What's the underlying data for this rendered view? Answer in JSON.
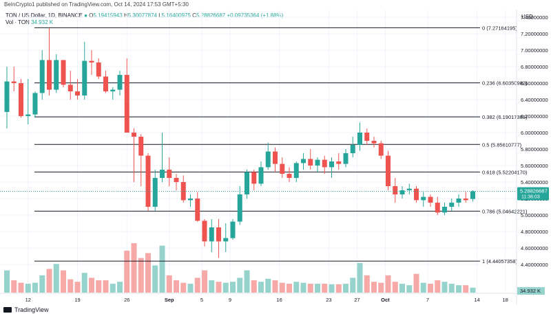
{
  "header": {
    "published": "BeInCrypto1 published on TradingView.com, Oct 14, 2024 17:53 GMT+5:30",
    "currency": "USD"
  },
  "legend": {
    "symbol": "TON / US Dollar, 1D, BINANCE",
    "o_label": "O",
    "o_value": "5.19415943",
    "h_label": "H",
    "h_value": "5.30077874",
    "l_label": "L",
    "l_value": "5.16400975",
    "c_label": "C",
    "c_value": "5.28826687",
    "change": "+0.09735364 (+1.88%)",
    "vol_label": "Vol · TON",
    "vol_value": "34.932 K"
  },
  "footer": {
    "brand": "TradingView"
  },
  "colors": {
    "up": "#26a69a",
    "down": "#ef5350",
    "up_vol": "#96d3cd",
    "down_vol": "#f6a9a7",
    "line": "#131722",
    "price_badge": "#26a69a"
  },
  "chart_data": {
    "type": "candlestick",
    "ylim": [
      4.1,
      7.5
    ],
    "y_ticks": [
      "7.40000000",
      "7.20000000",
      "7.00000000",
      "6.80000000",
      "6.60000000",
      "6.40000000",
      "6.20000000",
      "6.00000000",
      "5.80000000",
      "5.60000000",
      "5.40000000",
      "5.20000000",
      "5.00000000",
      "4.80000000",
      "4.60000000",
      "4.40000000"
    ],
    "x_ticks": [
      "12",
      "19",
      "26",
      "Sep",
      "5",
      "9",
      "16",
      "23",
      "27",
      "Oct",
      "7",
      "14",
      "18"
    ],
    "fib_levels": [
      {
        "label": "0 (7.27164195)",
        "value": 7.27164195
      },
      {
        "label": "0.236 (6.60350982)",
        "value": 6.60350982
      },
      {
        "label": "0.382 (6.19017383)",
        "value": 6.19017383
      },
      {
        "label": "0.5 (5.85610777)",
        "value": 5.85610777
      },
      {
        "label": "0.618 (5.52204170)",
        "value": 5.5220417
      },
      {
        "label": "0.786 (5.04642221)",
        "value": 5.04642221
      },
      {
        "label": "1 (4.44057358)",
        "value": 4.44057358
      }
    ],
    "last_price_label": "5.28826687",
    "countdown_label": "11:36:03",
    "last_volume_label": "34.932 K",
    "candles": [
      {
        "o": 6.25,
        "h": 6.8,
        "l": 6.05,
        "c": 6.62,
        "v": 0.45
      },
      {
        "o": 6.62,
        "h": 6.8,
        "l": 6.5,
        "c": 6.6,
        "v": 0.25
      },
      {
        "o": 6.6,
        "h": 6.65,
        "l": 6.18,
        "c": 6.2,
        "v": 0.2
      },
      {
        "o": 6.2,
        "h": 6.65,
        "l": 6.1,
        "c": 6.22,
        "v": 0.18
      },
      {
        "o": 6.22,
        "h": 6.5,
        "l": 6.18,
        "c": 6.48,
        "v": 0.2
      },
      {
        "o": 6.48,
        "h": 7.0,
        "l": 6.4,
        "c": 6.88,
        "v": 0.35
      },
      {
        "o": 6.88,
        "h": 7.27,
        "l": 6.45,
        "c": 6.52,
        "v": 0.48
      },
      {
        "o": 6.52,
        "h": 6.95,
        "l": 6.48,
        "c": 6.88,
        "v": 0.58
      },
      {
        "o": 6.88,
        "h": 6.88,
        "l": 6.55,
        "c": 6.58,
        "v": 0.45
      },
      {
        "o": 6.58,
        "h": 6.75,
        "l": 6.4,
        "c": 6.5,
        "v": 0.27
      },
      {
        "o": 6.5,
        "h": 6.65,
        "l": 6.4,
        "c": 6.45,
        "v": 0.22
      },
      {
        "o": 6.45,
        "h": 7.1,
        "l": 6.4,
        "c": 6.87,
        "v": 0.4
      },
      {
        "o": 6.87,
        "h": 7.0,
        "l": 6.7,
        "c": 6.85,
        "v": 0.3
      },
      {
        "o": 6.85,
        "h": 6.9,
        "l": 6.65,
        "c": 6.68,
        "v": 0.25
      },
      {
        "o": 6.68,
        "h": 6.75,
        "l": 6.48,
        "c": 6.5,
        "v": 0.25
      },
      {
        "o": 6.5,
        "h": 6.55,
        "l": 6.4,
        "c": 6.52,
        "v": 0.18
      },
      {
        "o": 6.52,
        "h": 6.75,
        "l": 6.45,
        "c": 6.7,
        "v": 0.22
      },
      {
        "o": 6.7,
        "h": 6.9,
        "l": 6.0,
        "c": 6.0,
        "v": 0.85
      },
      {
        "o": 6.0,
        "h": 6.05,
        "l": 5.4,
        "c": 5.95,
        "v": 1.0
      },
      {
        "o": 5.95,
        "h": 5.98,
        "l": 5.35,
        "c": 5.72,
        "v": 0.7
      },
      {
        "o": 5.72,
        "h": 5.75,
        "l": 5.05,
        "c": 5.1,
        "v": 0.8
      },
      {
        "o": 5.1,
        "h": 5.55,
        "l": 5.05,
        "c": 5.45,
        "v": 0.55
      },
      {
        "o": 5.45,
        "h": 6.0,
        "l": 5.4,
        "c": 5.55,
        "v": 0.95
      },
      {
        "o": 5.55,
        "h": 5.7,
        "l": 5.35,
        "c": 5.45,
        "v": 0.35
      },
      {
        "o": 5.45,
        "h": 5.5,
        "l": 5.3,
        "c": 5.4,
        "v": 0.25
      },
      {
        "o": 5.4,
        "h": 5.48,
        "l": 5.15,
        "c": 5.18,
        "v": 0.2
      },
      {
        "o": 5.18,
        "h": 5.25,
        "l": 5.1,
        "c": 5.2,
        "v": 0.18
      },
      {
        "o": 5.2,
        "h": 5.28,
        "l": 4.92,
        "c": 4.93,
        "v": 0.3
      },
      {
        "o": 4.93,
        "h": 4.95,
        "l": 4.62,
        "c": 4.68,
        "v": 0.45
      },
      {
        "o": 4.68,
        "h": 4.95,
        "l": 4.55,
        "c": 4.85,
        "v": 0.25
      },
      {
        "o": 4.85,
        "h": 4.95,
        "l": 4.48,
        "c": 4.68,
        "v": 0.22
      },
      {
        "o": 4.68,
        "h": 4.9,
        "l": 4.55,
        "c": 4.72,
        "v": 0.2
      },
      {
        "o": 4.72,
        "h": 4.95,
        "l": 4.7,
        "c": 4.92,
        "v": 0.22
      },
      {
        "o": 4.92,
        "h": 5.35,
        "l": 4.88,
        "c": 5.25,
        "v": 0.3
      },
      {
        "o": 5.25,
        "h": 5.55,
        "l": 5.2,
        "c": 5.52,
        "v": 0.45
      },
      {
        "o": 5.52,
        "h": 5.55,
        "l": 5.3,
        "c": 5.38,
        "v": 0.25
      },
      {
        "o": 5.38,
        "h": 5.65,
        "l": 5.35,
        "c": 5.58,
        "v": 0.22
      },
      {
        "o": 5.58,
        "h": 5.88,
        "l": 5.55,
        "c": 5.77,
        "v": 0.28
      },
      {
        "o": 5.77,
        "h": 5.82,
        "l": 5.52,
        "c": 5.62,
        "v": 0.25
      },
      {
        "o": 5.62,
        "h": 5.7,
        "l": 5.45,
        "c": 5.5,
        "v": 0.2
      },
      {
        "o": 5.5,
        "h": 5.58,
        "l": 5.4,
        "c": 5.45,
        "v": 0.18
      },
      {
        "o": 5.45,
        "h": 5.65,
        "l": 5.4,
        "c": 5.63,
        "v": 0.22
      },
      {
        "o": 5.63,
        "h": 5.75,
        "l": 5.55,
        "c": 5.68,
        "v": 0.2
      },
      {
        "o": 5.68,
        "h": 5.8,
        "l": 5.55,
        "c": 5.6,
        "v": 0.18
      },
      {
        "o": 5.6,
        "h": 5.7,
        "l": 5.52,
        "c": 5.67,
        "v": 0.18
      },
      {
        "o": 5.67,
        "h": 5.72,
        "l": 5.5,
        "c": 5.58,
        "v": 0.18
      },
      {
        "o": 5.58,
        "h": 5.7,
        "l": 5.45,
        "c": 5.65,
        "v": 0.17
      },
      {
        "o": 5.65,
        "h": 5.75,
        "l": 5.55,
        "c": 5.62,
        "v": 0.17
      },
      {
        "o": 5.62,
        "h": 5.8,
        "l": 5.58,
        "c": 5.75,
        "v": 0.18
      },
      {
        "o": 5.75,
        "h": 5.95,
        "l": 5.7,
        "c": 5.85,
        "v": 0.3
      },
      {
        "o": 5.85,
        "h": 6.12,
        "l": 5.78,
        "c": 6.0,
        "v": 0.6
      },
      {
        "o": 6.0,
        "h": 6.05,
        "l": 5.85,
        "c": 5.9,
        "v": 0.35
      },
      {
        "o": 5.9,
        "h": 5.95,
        "l": 5.82,
        "c": 5.87,
        "v": 0.22
      },
      {
        "o": 5.87,
        "h": 5.9,
        "l": 5.68,
        "c": 5.72,
        "v": 0.2
      },
      {
        "o": 5.72,
        "h": 5.78,
        "l": 5.3,
        "c": 5.35,
        "v": 0.35
      },
      {
        "o": 5.35,
        "h": 5.45,
        "l": 5.15,
        "c": 5.25,
        "v": 0.22
      },
      {
        "o": 5.25,
        "h": 5.35,
        "l": 5.2,
        "c": 5.3,
        "v": 0.18
      },
      {
        "o": 5.3,
        "h": 5.38,
        "l": 5.25,
        "c": 5.32,
        "v": 0.15
      },
      {
        "o": 5.32,
        "h": 5.35,
        "l": 5.15,
        "c": 5.18,
        "v": 0.38
      },
      {
        "o": 5.18,
        "h": 5.28,
        "l": 5.1,
        "c": 5.22,
        "v": 0.2
      },
      {
        "o": 5.22,
        "h": 5.25,
        "l": 5.1,
        "c": 5.15,
        "v": 0.18
      },
      {
        "o": 5.15,
        "h": 5.22,
        "l": 5.0,
        "c": 5.03,
        "v": 0.25
      },
      {
        "o": 5.03,
        "h": 5.15,
        "l": 5.0,
        "c": 5.1,
        "v": 0.22
      },
      {
        "o": 5.1,
        "h": 5.2,
        "l": 5.05,
        "c": 5.15,
        "v": 0.18
      },
      {
        "o": 5.15,
        "h": 5.25,
        "l": 5.1,
        "c": 5.2,
        "v": 0.15
      },
      {
        "o": 5.2,
        "h": 5.28,
        "l": 5.15,
        "c": 5.18,
        "v": 0.15
      },
      {
        "o": 5.194,
        "h": 5.301,
        "l": 5.164,
        "c": 5.288,
        "v": 0.1
      }
    ]
  }
}
